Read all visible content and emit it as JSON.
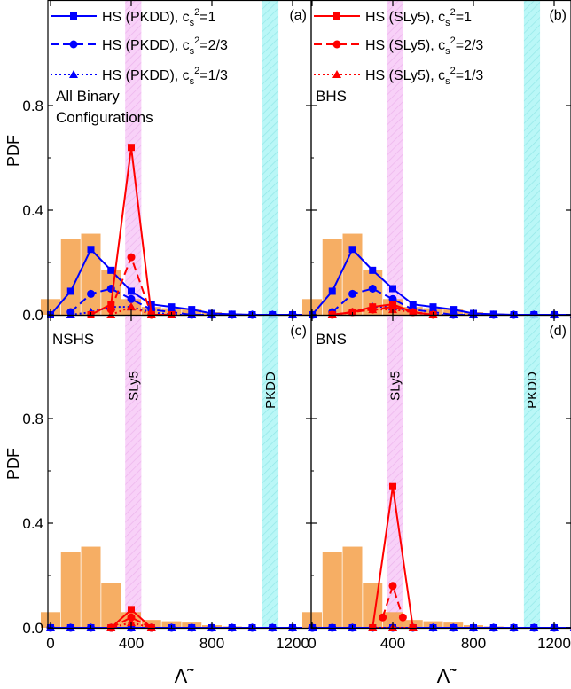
{
  "colors": {
    "pkdd_series": "#0000ff",
    "sly5_series": "#ff0000",
    "histogram": "#f5a049",
    "sly5_band": "#f4b8f4",
    "pkdd_band": "#9ff4f4"
  },
  "axes": {
    "y_label": "PDF",
    "x_label": "Λ̃",
    "x_ticks": [
      "0",
      "400",
      "800",
      "1200"
    ],
    "y_ticks": [
      "0.0",
      "0.4",
      "0.8"
    ]
  },
  "legend": {
    "left": [
      {
        "text": "HS (PKDD), cs²=1",
        "main": "HS (PKDD), c",
        "sub": "s",
        "sup": "2",
        "tail": "=1"
      },
      {
        "text": "HS (PKDD), cs²=2/3",
        "main": "HS (PKDD), c",
        "sub": "s",
        "sup": "2",
        "tail": "=2/3"
      },
      {
        "text": "HS (PKDD), cs²=1/3",
        "main": "HS (PKDD), c",
        "sub": "s",
        "sup": "2",
        "tail": "=1/3"
      }
    ],
    "right": [
      {
        "text": "HS (SLy5), cs²=1",
        "main": "HS (SLy5), c",
        "sub": "s",
        "sup": "2",
        "tail": "=1"
      },
      {
        "text": "HS (SLy5), cs²=2/3",
        "main": "HS (SLy5), c",
        "sub": "s",
        "sup": "2",
        "tail": "=2/3"
      },
      {
        "text": "HS (SLy5), cs²=1/3",
        "main": "HS (SLy5), c",
        "sub": "s",
        "sup": "2",
        "tail": "=1/3"
      }
    ]
  },
  "chart_data": [
    {
      "type": "bar",
      "panel": "(a)",
      "note": "All Binary Configurations",
      "band_labels": [],
      "xlim": [
        0,
        1300
      ],
      "ylim": [
        0,
        1.0
      ],
      "bands": [
        {
          "name": "SLy5",
          "range": [
            370,
            450
          ]
        },
        {
          "name": "PKDD",
          "range": [
            1050,
            1130
          ]
        }
      ],
      "histogram": {
        "x": [
          0,
          100,
          200,
          300,
          400,
          500,
          600,
          700,
          800,
          900,
          1000,
          1100,
          1200
        ],
        "values": [
          0.06,
          0.29,
          0.31,
          0.17,
          0.06,
          0.03,
          0.025,
          0.02,
          0.01,
          0.005,
          0.003,
          0.002,
          0.002
        ]
      },
      "series": [
        {
          "name": "HS (PKDD), cs²=1",
          "style": "solid",
          "marker": "square",
          "color": "#0000ff",
          "x": [
            0,
            100,
            200,
            300,
            400,
            500,
            600,
            700,
            800,
            900,
            1000,
            1100,
            1200,
            1300
          ],
          "y": [
            0.0,
            0.09,
            0.25,
            0.17,
            0.09,
            0.04,
            0.03,
            0.02,
            0.005,
            0.002,
            0.0,
            0.0,
            0.0,
            0.0
          ]
        },
        {
          "name": "HS (PKDD), cs²=2/3",
          "style": "dash",
          "marker": "circle",
          "color": "#0000ff",
          "x": [
            100,
            200,
            300,
            400,
            500,
            600,
            700,
            800,
            900,
            1000,
            1100,
            1200,
            1300
          ],
          "y": [
            0.01,
            0.08,
            0.1,
            0.06,
            0.02,
            0.01,
            0.0,
            0.0,
            0.0,
            0.0,
            0.0,
            0.0,
            0.0
          ]
        },
        {
          "name": "HS (PKDD), cs²=1/3",
          "style": "dot",
          "marker": "triangle",
          "color": "#0000ff",
          "x": [
            100,
            200,
            300,
            400,
            500,
            600,
            700,
            800,
            900,
            1000,
            1100,
            1200,
            1300
          ],
          "y": [
            0.0,
            0.01,
            0.03,
            0.03,
            0.01,
            0.0,
            0.0,
            0.0,
            0.0,
            0.0,
            0.0,
            0.0,
            0.0
          ]
        },
        {
          "name": "HS (SLy5), cs²=1",
          "style": "solid",
          "marker": "square",
          "color": "#ff0000",
          "x": [
            200,
            300,
            400,
            500,
            600
          ],
          "y": [
            0.0,
            0.04,
            0.64,
            0.0,
            0.0
          ]
        },
        {
          "name": "HS (SLy5), cs²=2/3",
          "style": "dash",
          "marker": "circle",
          "color": "#ff0000",
          "x": [
            300,
            400,
            500
          ],
          "y": [
            0.02,
            0.22,
            0.0
          ]
        },
        {
          "name": "HS (SLy5), cs²=1/3",
          "style": "dot",
          "marker": "triangle",
          "color": "#ff0000",
          "x": [
            300,
            400,
            500
          ],
          "y": [
            0.0,
            0.03,
            0.0
          ]
        }
      ]
    },
    {
      "type": "bar",
      "panel": "(b)",
      "note": "BHS",
      "band_labels": [],
      "xlim": [
        0,
        1300
      ],
      "ylim": [
        0,
        1.0
      ],
      "bands": [
        {
          "name": "SLy5",
          "range": [
            370,
            450
          ]
        },
        {
          "name": "PKDD",
          "range": [
            1050,
            1130
          ]
        }
      ],
      "histogram": {
        "x": [
          0,
          100,
          200,
          300,
          400,
          500,
          600,
          700,
          800,
          900,
          1000,
          1100,
          1200
        ],
        "values": [
          0.06,
          0.29,
          0.31,
          0.17,
          0.06,
          0.03,
          0.025,
          0.02,
          0.01,
          0.005,
          0.003,
          0.002,
          0.002
        ]
      },
      "series": [
        {
          "name": "HS (PKDD), cs²=1",
          "style": "solid",
          "marker": "square",
          "color": "#0000ff",
          "x": [
            0,
            100,
            200,
            300,
            400,
            500,
            600,
            700,
            800,
            900,
            1000,
            1100,
            1200,
            1300
          ],
          "y": [
            0.0,
            0.09,
            0.25,
            0.17,
            0.1,
            0.04,
            0.03,
            0.02,
            0.005,
            0.002,
            0.0,
            0.0,
            0.0,
            0.0
          ]
        },
        {
          "name": "HS (PKDD), cs²=2/3",
          "style": "dash",
          "marker": "circle",
          "color": "#0000ff",
          "x": [
            100,
            200,
            300,
            400,
            500,
            600,
            700,
            800,
            900,
            1000,
            1100,
            1200,
            1300
          ],
          "y": [
            0.01,
            0.08,
            0.1,
            0.06,
            0.02,
            0.01,
            0.0,
            0.0,
            0.0,
            0.0,
            0.0,
            0.0,
            0.0
          ]
        },
        {
          "name": "HS (PKDD), cs²=1/3",
          "style": "dot",
          "marker": "triangle",
          "color": "#0000ff",
          "x": [
            100,
            200,
            300,
            400,
            500,
            600,
            700,
            800,
            900,
            1000,
            1100,
            1200,
            1300
          ],
          "y": [
            0.0,
            0.01,
            0.03,
            0.03,
            0.01,
            0.0,
            0.0,
            0.0,
            0.0,
            0.0,
            0.0,
            0.0,
            0.0
          ]
        },
        {
          "name": "HS (SLy5), cs²=1",
          "style": "solid",
          "marker": "square",
          "color": "#ff0000",
          "x": [
            100,
            200,
            300,
            400,
            500,
            600
          ],
          "y": [
            0.0,
            0.01,
            0.03,
            0.04,
            0.01,
            0.0
          ]
        },
        {
          "name": "HS (SLy5), cs²=2/3",
          "style": "dash",
          "marker": "circle",
          "color": "#ff0000",
          "x": [
            100,
            200,
            300,
            400,
            500,
            600
          ],
          "y": [
            0.0,
            0.01,
            0.02,
            0.03,
            0.01,
            0.0
          ]
        },
        {
          "name": "HS (SLy5), cs²=1/3",
          "style": "dot",
          "marker": "triangle",
          "color": "#ff0000",
          "x": [
            100,
            200,
            300,
            400,
            500,
            600
          ],
          "y": [
            0.0,
            0.01,
            0.02,
            0.02,
            0.01,
            0.0
          ]
        }
      ]
    },
    {
      "type": "bar",
      "panel": "(c)",
      "note": "NSHS",
      "band_labels": [
        "SLy5",
        "PKDD"
      ],
      "xlim": [
        0,
        1300
      ],
      "ylim": [
        0,
        1.0
      ],
      "bands": [
        {
          "name": "SLy5",
          "range": [
            370,
            450
          ]
        },
        {
          "name": "PKDD",
          "range": [
            1050,
            1130
          ]
        }
      ],
      "histogram": {
        "x": [
          0,
          100,
          200,
          300,
          400,
          500,
          600,
          700,
          800,
          900,
          1000,
          1100,
          1200
        ],
        "values": [
          0.06,
          0.29,
          0.31,
          0.17,
          0.06,
          0.03,
          0.025,
          0.02,
          0.01,
          0.005,
          0.003,
          0.002,
          0.002
        ]
      },
      "series": [
        {
          "name": "HS (PKDD), cs²=1",
          "style": "solid",
          "marker": "square",
          "color": "#0000ff",
          "x": [
            0,
            100,
            200,
            300,
            400,
            500,
            600,
            700,
            800,
            900,
            1000,
            1100,
            1200,
            1300
          ],
          "y": [
            0.0,
            0.0,
            0.0,
            0.0,
            0.0,
            0.0,
            0.0,
            0.0,
            0.0,
            0.0,
            0.0,
            0.0,
            0.0,
            0.0
          ]
        },
        {
          "name": "HS (PKDD), cs²=2/3",
          "style": "dash",
          "marker": "circle",
          "color": "#0000ff",
          "x": [
            0,
            100,
            200,
            300,
            400,
            500,
            600,
            700,
            800,
            900,
            1000,
            1100,
            1200,
            1300
          ],
          "y": [
            0.0,
            0.0,
            0.0,
            0.0,
            0.0,
            0.0,
            0.0,
            0.0,
            0.0,
            0.0,
            0.0,
            0.0,
            0.0,
            0.0
          ]
        },
        {
          "name": "HS (PKDD), cs²=1/3",
          "style": "dot",
          "marker": "triangle",
          "color": "#0000ff",
          "x": [
            0,
            100,
            200,
            300,
            400,
            500,
            600,
            700,
            800,
            900,
            1000,
            1100,
            1200,
            1300
          ],
          "y": [
            0.0,
            0.0,
            0.0,
            0.0,
            0.0,
            0.0,
            0.0,
            0.0,
            0.0,
            0.0,
            0.0,
            0.0,
            0.0,
            0.0
          ]
        },
        {
          "name": "HS (SLy5), cs²=1",
          "style": "solid",
          "marker": "square",
          "color": "#ff0000",
          "x": [
            300,
            400,
            500
          ],
          "y": [
            0.0,
            0.07,
            0.0
          ]
        },
        {
          "name": "HS (SLy5), cs²=2/3",
          "style": "dash",
          "marker": "circle",
          "color": "#ff0000",
          "x": [
            300,
            400,
            500
          ],
          "y": [
            0.0,
            0.04,
            0.0
          ]
        },
        {
          "name": "HS (SLy5), cs²=1/3",
          "style": "dot",
          "marker": "triangle",
          "color": "#ff0000",
          "x": [
            300,
            400,
            500
          ],
          "y": [
            0.0,
            0.02,
            0.0
          ]
        }
      ]
    },
    {
      "type": "bar",
      "panel": "(d)",
      "note": "BNS",
      "band_labels": [
        "SLy5",
        "PKDD"
      ],
      "xlim": [
        0,
        1300
      ],
      "ylim": [
        0,
        1.0
      ],
      "bands": [
        {
          "name": "SLy5",
          "range": [
            370,
            450
          ]
        },
        {
          "name": "PKDD",
          "range": [
            1050,
            1130
          ]
        }
      ],
      "histogram": {
        "x": [
          0,
          100,
          200,
          300,
          400,
          500,
          600,
          700,
          800,
          900,
          1000,
          1100,
          1200
        ],
        "values": [
          0.06,
          0.29,
          0.31,
          0.17,
          0.06,
          0.03,
          0.025,
          0.02,
          0.01,
          0.005,
          0.003,
          0.002,
          0.002
        ]
      },
      "series": [
        {
          "name": "HS (PKDD), cs²=1",
          "style": "solid",
          "marker": "square",
          "color": "#0000ff",
          "x": [
            0,
            100,
            200,
            300,
            400,
            500,
            600,
            700,
            800,
            900,
            1000,
            1100,
            1200,
            1300
          ],
          "y": [
            0.0,
            0.0,
            0.0,
            0.0,
            0.0,
            0.0,
            0.0,
            0.0,
            0.0,
            0.0,
            0.0,
            0.0,
            0.0,
            0.0
          ]
        },
        {
          "name": "HS (PKDD), cs²=2/3",
          "style": "dash",
          "marker": "circle",
          "color": "#0000ff",
          "x": [
            0,
            100,
            200,
            300,
            400,
            500,
            600,
            700,
            800,
            900,
            1000,
            1100,
            1200,
            1300
          ],
          "y": [
            0.0,
            0.0,
            0.0,
            0.0,
            0.0,
            0.0,
            0.0,
            0.0,
            0.0,
            0.0,
            0.0,
            0.0,
            0.0,
            0.0
          ]
        },
        {
          "name": "HS (PKDD), cs²=1/3",
          "style": "dot",
          "marker": "triangle",
          "color": "#0000ff",
          "x": [
            0,
            100,
            200,
            300,
            400,
            500,
            600,
            700,
            800,
            900,
            1000,
            1100,
            1200,
            1300
          ],
          "y": [
            0.0,
            0.0,
            0.0,
            0.0,
            0.0,
            0.0,
            0.0,
            0.0,
            0.0,
            0.0,
            0.0,
            0.0,
            0.0,
            0.0
          ]
        },
        {
          "name": "HS (SLy5), cs²=1",
          "style": "solid",
          "marker": "square",
          "color": "#ff0000",
          "x": [
            300,
            400,
            500
          ],
          "y": [
            0.0,
            0.54,
            0.0
          ]
        },
        {
          "name": "HS (SLy5), cs²=2/3",
          "style": "dash",
          "marker": "circle",
          "color": "#ff0000",
          "x": [
            350,
            400,
            450
          ],
          "y": [
            0.04,
            0.16,
            0.04
          ]
        },
        {
          "name": "HS (SLy5), cs²=1/3",
          "style": "dot",
          "marker": "triangle",
          "color": "#ff0000",
          "x": [
            300,
            400,
            500
          ],
          "y": [
            0.0,
            0.0,
            0.0
          ]
        }
      ]
    }
  ]
}
